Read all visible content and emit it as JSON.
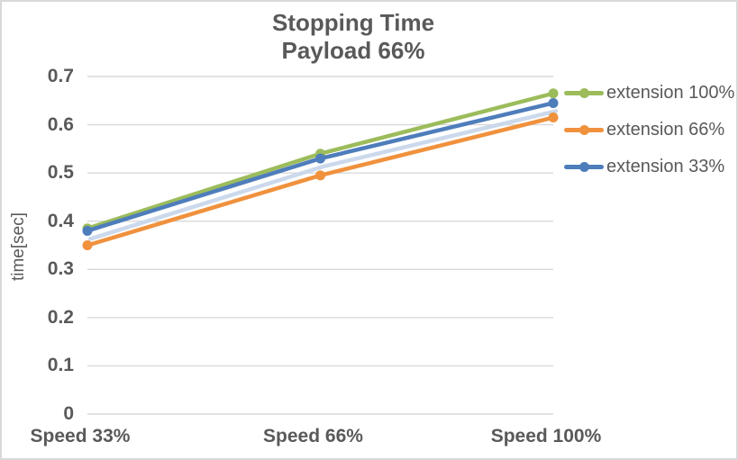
{
  "chart_data": {
    "type": "line",
    "title": "Stopping Time",
    "subtitle": "Payload 66%",
    "categories": [
      "Speed 33%",
      "Speed 66%",
      "Speed 100%"
    ],
    "series": [
      {
        "name": "extension 100%",
        "color": "#9cbc5b",
        "values": [
          0.385,
          0.54,
          0.665
        ]
      },
      {
        "name": "extension 66%",
        "color": "#f0913d",
        "values": [
          0.35,
          0.495,
          0.615
        ]
      },
      {
        "name": "extension 33%",
        "color": "#4e7dbb",
        "values": [
          0.38,
          0.53,
          0.645
        ],
        "shadow_color": "#c9d7eb"
      }
    ],
    "xlabel": "",
    "ylabel": "time[sec]",
    "ylim": [
      0,
      0.7
    ],
    "yticks": [
      0,
      0.1,
      0.2,
      0.3,
      0.4,
      0.5,
      0.6,
      0.7
    ],
    "ytick_labels": [
      "0",
      "0.1",
      "0.2",
      "0.3",
      "0.4",
      "0.5",
      "0.6",
      "0.7"
    ],
    "grid": true,
    "legend_position": "right",
    "marker": "circle",
    "colors": {
      "text": "#595959",
      "gridline": "#d9d9d9",
      "chart_border": "#d9d9d9",
      "background": "#ffffff"
    }
  }
}
